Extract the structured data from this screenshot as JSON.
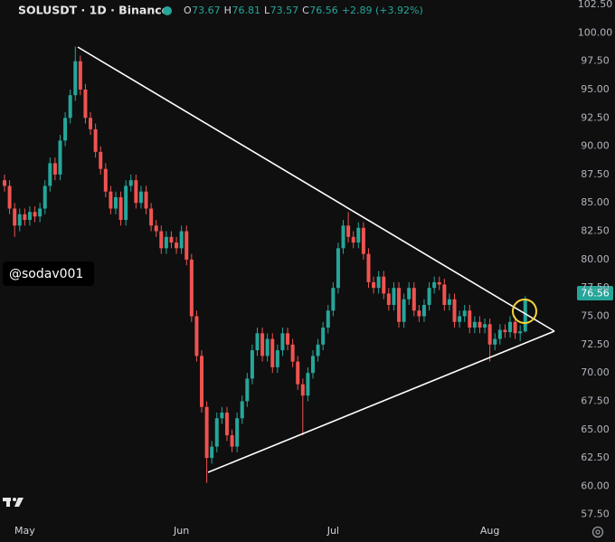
{
  "chart_data": {
    "type": "candlestick",
    "header": {
      "symbol": "SOLUSDT · 1D · Binance",
      "fields": [
        {
          "label": "O",
          "value": "73.67"
        },
        {
          "label": "H",
          "value": "76.81"
        },
        {
          "label": "L",
          "value": "73.57"
        },
        {
          "label": "C",
          "value": "76.56"
        }
      ],
      "change": "+2.89 (+3.92%)"
    },
    "watermark": "@sodav001",
    "last_price_label": "76.56",
    "up_color": "#26a69a",
    "down_color": "#ef5350",
    "ylim": [
      57,
      102.9
    ],
    "yticks": [
      {
        "value": 57.5,
        "label": "57.50"
      },
      {
        "value": 60,
        "label": "60.00"
      },
      {
        "value": 62.5,
        "label": "62.50"
      },
      {
        "value": 65,
        "label": "65.00"
      },
      {
        "value": 67.5,
        "label": "67.50"
      },
      {
        "value": 70,
        "label": "70.00"
      },
      {
        "value": 72.5,
        "label": "72.50"
      },
      {
        "value": 75,
        "label": "75.00"
      },
      {
        "value": 77.5,
        "label": "77.50"
      },
      {
        "value": 80,
        "label": "80.00"
      },
      {
        "value": 82.5,
        "label": "82.50"
      },
      {
        "value": 85,
        "label": "85.00"
      },
      {
        "value": 87.5,
        "label": "87.50"
      },
      {
        "value": 90,
        "label": "90.00"
      },
      {
        "value": 92.5,
        "label": "92.50"
      },
      {
        "value": 95,
        "label": "95.00"
      },
      {
        "value": 97.5,
        "label": "97.50"
      },
      {
        "value": 100,
        "label": "100.00"
      },
      {
        "value": 102.5,
        "label": "102.50"
      }
    ],
    "categories": [
      null,
      null,
      null,
      null,
      "May",
      null,
      null,
      null,
      null,
      null,
      null,
      null,
      null,
      null,
      null,
      null,
      null,
      null,
      null,
      null,
      null,
      null,
      null,
      null,
      null,
      null,
      null,
      null,
      null,
      null,
      null,
      null,
      null,
      null,
      null,
      "Jun",
      null,
      null,
      null,
      null,
      null,
      null,
      null,
      null,
      null,
      null,
      null,
      null,
      null,
      null,
      null,
      null,
      null,
      null,
      null,
      null,
      null,
      null,
      null,
      null,
      null,
      null,
      null,
      null,
      null,
      "Jul",
      null,
      null,
      null,
      null,
      null,
      null,
      null,
      null,
      null,
      null,
      null,
      null,
      null,
      null,
      null,
      null,
      null,
      null,
      null,
      null,
      null,
      null,
      null,
      null,
      null,
      null,
      null,
      null,
      null,
      null,
      "Aug",
      null,
      null,
      null,
      null,
      null,
      null,
      null
    ],
    "series": [
      {
        "name": "SOLUSDT",
        "values": [
          [
            87,
            87.5,
            86,
            86.5
          ],
          [
            86.5,
            87,
            84,
            84.5
          ],
          [
            84.5,
            85,
            82,
            83
          ],
          [
            83,
            84.5,
            82.5,
            84
          ],
          [
            84,
            84.5,
            83,
            83.5
          ],
          [
            83.5,
            84.7,
            83,
            84.2
          ],
          [
            84.2,
            84.7,
            83.3,
            83.8
          ],
          [
            83.8,
            85,
            83.3,
            84.5
          ],
          [
            84.5,
            87,
            84,
            86.5
          ],
          [
            86.5,
            89,
            86,
            88.5
          ],
          [
            88.5,
            89,
            87,
            87.5
          ],
          [
            87.5,
            91,
            87,
            90.5
          ],
          [
            90.5,
            93,
            90,
            92.5
          ],
          [
            92.5,
            95,
            92,
            94.5
          ],
          [
            94.5,
            98.8,
            94,
            97.5
          ],
          [
            97.5,
            98,
            94.5,
            95
          ],
          [
            95,
            95.5,
            92,
            92.5
          ],
          [
            92.5,
            93,
            91,
            91.5
          ],
          [
            91.5,
            92,
            89,
            89.5
          ],
          [
            89.5,
            90,
            87.5,
            88
          ],
          [
            88,
            88.5,
            85.5,
            86
          ],
          [
            86,
            86.5,
            84,
            84.5
          ],
          [
            84.5,
            86,
            84,
            85.5
          ],
          [
            85.5,
            86,
            83,
            83.5
          ],
          [
            83.5,
            87,
            83,
            86.5
          ],
          [
            86.5,
            87.5,
            86,
            87
          ],
          [
            87,
            87.5,
            84.5,
            85
          ],
          [
            85,
            86.5,
            84.5,
            86
          ],
          [
            86,
            86.5,
            84,
            84.5
          ],
          [
            84.5,
            85,
            82.5,
            83
          ],
          [
            83,
            83.5,
            82,
            82.5
          ],
          [
            82.5,
            83,
            80.5,
            81
          ],
          [
            81,
            82.5,
            80.5,
            82
          ],
          [
            82,
            82.5,
            81,
            81.5
          ],
          [
            81.5,
            82,
            80.5,
            81
          ],
          [
            81,
            83,
            80.5,
            82.5
          ],
          [
            82.5,
            83,
            79.5,
            80
          ],
          [
            80,
            80.5,
            74.5,
            75
          ],
          [
            75,
            75.5,
            71,
            71.5
          ],
          [
            71.5,
            72,
            66.5,
            67
          ],
          [
            67,
            67.5,
            60.3,
            62.5
          ],
          [
            62.5,
            64,
            62,
            63.5
          ],
          [
            63.5,
            66.5,
            63,
            66
          ],
          [
            66,
            67,
            65.5,
            66.5
          ],
          [
            66.5,
            67,
            64,
            64.5
          ],
          [
            64.5,
            65,
            63,
            63.5
          ],
          [
            63.5,
            66.5,
            63,
            66
          ],
          [
            66,
            68,
            65.5,
            67.5
          ],
          [
            67.5,
            70,
            67,
            69.5
          ],
          [
            69.5,
            72.5,
            69,
            72
          ],
          [
            72,
            74,
            71.5,
            73.5
          ],
          [
            73.5,
            74,
            71,
            71.5
          ],
          [
            71.5,
            73.5,
            71,
            73
          ],
          [
            73,
            73.5,
            70,
            70.5
          ],
          [
            70.5,
            72.5,
            70,
            72
          ],
          [
            72,
            74,
            71.5,
            73.5
          ],
          [
            73.5,
            74,
            72,
            72.5
          ],
          [
            72.5,
            73,
            70.5,
            71
          ],
          [
            71,
            71.5,
            68.5,
            69
          ],
          [
            69,
            69.5,
            64.5,
            68
          ],
          [
            68,
            70.5,
            67.5,
            70
          ],
          [
            70,
            72,
            69.5,
            71.5
          ],
          [
            71.5,
            73,
            71,
            72.5
          ],
          [
            72.5,
            74.5,
            72,
            74
          ],
          [
            74,
            76,
            73.5,
            75.5
          ],
          [
            75.5,
            78,
            75,
            77.5
          ],
          [
            77.5,
            81.5,
            77,
            81
          ],
          [
            81,
            83.5,
            80.5,
            83
          ],
          [
            83,
            84.2,
            81.5,
            82
          ],
          [
            82,
            82.5,
            81,
            81.5
          ],
          [
            81.5,
            83.3,
            81,
            82.8
          ],
          [
            82.8,
            83.3,
            80,
            80.5
          ],
          [
            80.5,
            81,
            77.5,
            78
          ],
          [
            78,
            78.5,
            77,
            77.5
          ],
          [
            77.5,
            79,
            77,
            78.5
          ],
          [
            78.5,
            79,
            76.5,
            77
          ],
          [
            77,
            77.5,
            75.5,
            76
          ],
          [
            76,
            78,
            75.5,
            77.5
          ],
          [
            77.5,
            78,
            74,
            74.5
          ],
          [
            74.5,
            77,
            74,
            76.5
          ],
          [
            76.5,
            78,
            76,
            77.5
          ],
          [
            77.5,
            78,
            75,
            75.5
          ],
          [
            75.5,
            76,
            74.5,
            75
          ],
          [
            75,
            76.5,
            74.5,
            76
          ],
          [
            76,
            78,
            75.5,
            77.5
          ],
          [
            77.5,
            78.5,
            77,
            78
          ],
          [
            78,
            78.5,
            77.3,
            77.8
          ],
          [
            77.8,
            78.3,
            75.5,
            76
          ],
          [
            76,
            77,
            75.5,
            76.5
          ],
          [
            76.5,
            77,
            74,
            74.5
          ],
          [
            74.5,
            75.5,
            74,
            75
          ],
          [
            75,
            76,
            74.5,
            75.5
          ],
          [
            75.5,
            76,
            73.5,
            74
          ],
          [
            74,
            75,
            73.5,
            74.5
          ],
          [
            74.5,
            75,
            73.5,
            74
          ],
          [
            74,
            74.8,
            73.5,
            74.3
          ],
          [
            74.3,
            74.8,
            71,
            72.5
          ],
          [
            72.5,
            73.5,
            72,
            73
          ],
          [
            73,
            74.3,
            72.5,
            73.8
          ],
          [
            73.8,
            74.3,
            73.1,
            73.6
          ],
          [
            73.6,
            75,
            73.1,
            74.5
          ],
          [
            74.5,
            75,
            73,
            73.5
          ],
          [
            73.5,
            74.2,
            72.8,
            73.67
          ],
          [
            73.67,
            76.81,
            73.57,
            76.56
          ]
        ]
      }
    ]
  }
}
